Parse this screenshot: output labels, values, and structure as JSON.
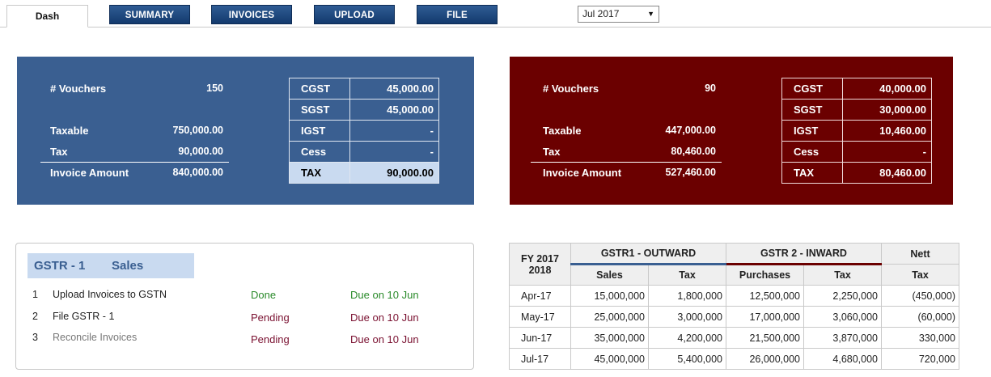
{
  "nav": {
    "tabs": [
      "Dash",
      "SUMMARY",
      "INVOICES",
      "UPLOAD",
      "FILE"
    ],
    "period": "Jul 2017"
  },
  "sales_summary": {
    "vouchers_label": "# Vouchers",
    "vouchers": "150",
    "taxable_label": "Taxable",
    "taxable": "750,000.00",
    "tax_label": "Tax",
    "tax": "90,000.00",
    "invoice_label": "Invoice Amount",
    "invoice": "840,000.00",
    "grid": [
      {
        "label": "CGST",
        "value": "45,000.00"
      },
      {
        "label": "SGST",
        "value": "45,000.00"
      },
      {
        "label": "IGST",
        "value": "-"
      },
      {
        "label": "Cess",
        "value": "-"
      },
      {
        "label": "TAX",
        "value": "90,000.00"
      }
    ]
  },
  "purchase_summary": {
    "vouchers_label": "# Vouchers",
    "vouchers": "90",
    "taxable_label": "Taxable",
    "taxable": "447,000.00",
    "tax_label": "Tax",
    "tax": "80,460.00",
    "invoice_label": "Invoice Amount",
    "invoice": "527,460.00",
    "grid": [
      {
        "label": "CGST",
        "value": "40,000.00"
      },
      {
        "label": "SGST",
        "value": "30,000.00"
      },
      {
        "label": "IGST",
        "value": "10,460.00"
      },
      {
        "label": "Cess",
        "value": "-"
      },
      {
        "label": "TAX",
        "value": "80,460.00"
      }
    ]
  },
  "gstr1": {
    "title_left": "GSTR - 1",
    "title_right": "Sales",
    "rows": [
      {
        "num": "1",
        "task": "Upload Invoices to GSTN",
        "status": "Done",
        "due": "Due on 10 Jun"
      },
      {
        "num": "2",
        "task": "File GSTR - 1",
        "status": "Pending",
        "due": "Due on 10 Jun"
      },
      {
        "num": "3",
        "task": "Reconcile Invoices",
        "status": "Pending",
        "due": "Due on 10 Jun"
      }
    ]
  },
  "fy_table": {
    "fy_label": "FY 2017\n2018",
    "fy_line1": "FY 2017",
    "fy_line2": "2018",
    "group1": "GSTR1 - OUTWARD",
    "group2": "GSTR 2 - INWARD",
    "group3": "Nett",
    "sub": [
      "Sales",
      "Tax",
      "Purchases",
      "Tax",
      "Tax"
    ],
    "rows": [
      {
        "month": "Apr-17",
        "sales": "15,000,000",
        "stax": "1,800,000",
        "purchases": "12,500,000",
        "ptax": "2,250,000",
        "nett": "(450,000)"
      },
      {
        "month": "May-17",
        "sales": "25,000,000",
        "stax": "3,000,000",
        "purchases": "17,000,000",
        "ptax": "3,060,000",
        "nett": "(60,000)"
      },
      {
        "month": "Jun-17",
        "sales": "35,000,000",
        "stax": "4,200,000",
        "purchases": "21,500,000",
        "ptax": "3,870,000",
        "nett": "330,000"
      },
      {
        "month": "Jul-17",
        "sales": "45,000,000",
        "stax": "5,400,000",
        "purchases": "26,000,000",
        "ptax": "4,680,000",
        "nett": "720,000"
      }
    ]
  }
}
